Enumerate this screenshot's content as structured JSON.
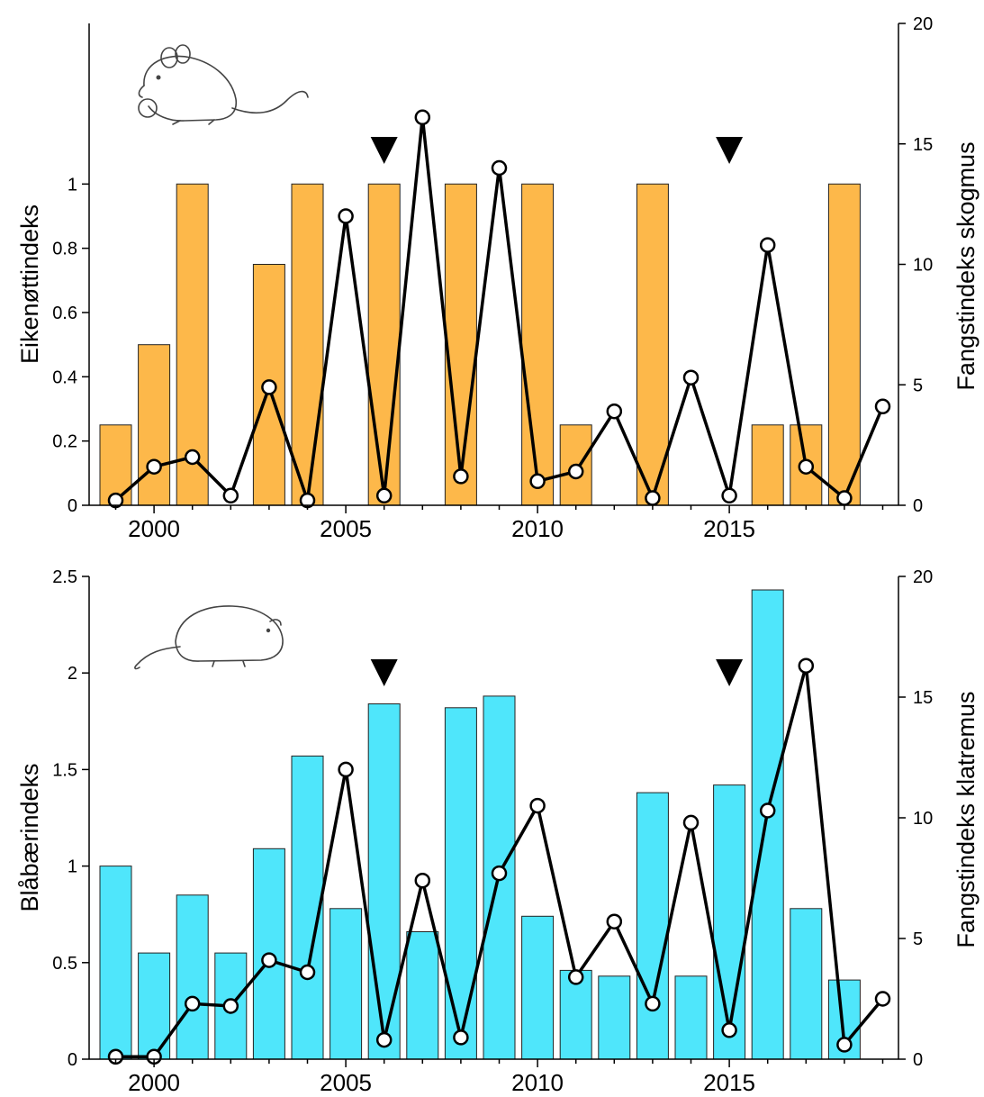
{
  "chart_data": [
    {
      "type": "bar",
      "combo": "bar+line",
      "illustration_icon": "wood-mouse-icon",
      "x": [
        1999,
        2000,
        2001,
        2002,
        2003,
        2004,
        2005,
        2006,
        2007,
        2008,
        2009,
        2010,
        2011,
        2012,
        2013,
        2014,
        2015,
        2016,
        2017,
        2018,
        2019
      ],
      "bar_series": {
        "name": "",
        "color": "#FDB84A",
        "values": [
          0.25,
          0.5,
          1,
          null,
          0.75,
          1,
          null,
          1,
          null,
          1,
          null,
          1,
          0.25,
          null,
          1,
          null,
          null,
          0.25,
          0.25,
          1,
          null
        ]
      },
      "line_series": {
        "name": "",
        "values": [
          0.2,
          1.6,
          2.0,
          0.4,
          4.9,
          0.2,
          12.0,
          0.4,
          16.1,
          1.2,
          14.0,
          1.0,
          1.4,
          3.9,
          0.3,
          5.3,
          0.4,
          10.8,
          1.6,
          0.3,
          4.1
        ]
      },
      "markers": [
        2006,
        2015
      ],
      "ylabel": "Eikenøttindeks",
      "ylabel_right": "Fangstindeks skogmus",
      "yticks": [
        "0",
        "0.2",
        "0.4",
        "0.6",
        "0.8",
        "1"
      ],
      "ylim": [
        0,
        1.5
      ],
      "yticks_right": [
        "0",
        "5",
        "10",
        "15",
        "20"
      ],
      "ylim_right": [
        0,
        20
      ],
      "xticks": [
        "2000",
        "2005",
        "2010",
        "2015"
      ],
      "xlim": [
        1998.5,
        2019.5
      ]
    },
    {
      "type": "bar",
      "combo": "bar+line",
      "illustration_icon": "bank-vole-icon",
      "x": [
        1999,
        2000,
        2001,
        2002,
        2003,
        2004,
        2005,
        2006,
        2007,
        2008,
        2009,
        2010,
        2011,
        2012,
        2013,
        2014,
        2015,
        2016,
        2017,
        2018,
        2019
      ],
      "bar_series": {
        "name": "",
        "color": "#4FE6FB",
        "values": [
          1.0,
          0.55,
          0.85,
          0.55,
          1.09,
          1.57,
          0.78,
          1.84,
          0.66,
          1.82,
          1.88,
          0.74,
          0.46,
          0.43,
          1.38,
          0.43,
          1.42,
          2.43,
          0.78,
          0.41,
          null
        ]
      },
      "line_series": {
        "name": "",
        "values": [
          0.1,
          0.1,
          2.3,
          2.2,
          4.1,
          3.6,
          12.0,
          0.8,
          7.4,
          0.9,
          7.7,
          10.5,
          3.4,
          5.7,
          2.3,
          9.8,
          1.2,
          10.3,
          16.3,
          0.6,
          2.5
        ]
      },
      "markers": [
        2006,
        2015
      ],
      "ylabel": "Blåbærindeks",
      "ylabel_right": "Fangstindeks klatremus",
      "yticks": [
        "0",
        "0.5",
        "1",
        "1.5",
        "2",
        "2.5"
      ],
      "ylim": [
        0,
        2.5
      ],
      "yticks_right": [
        "0",
        "5",
        "10",
        "15",
        "20"
      ],
      "ylim_right": [
        0,
        20
      ],
      "xticks": [
        "2000",
        "2005",
        "2010",
        "2015"
      ],
      "xlim": [
        1998.5,
        2019.5
      ]
    }
  ]
}
